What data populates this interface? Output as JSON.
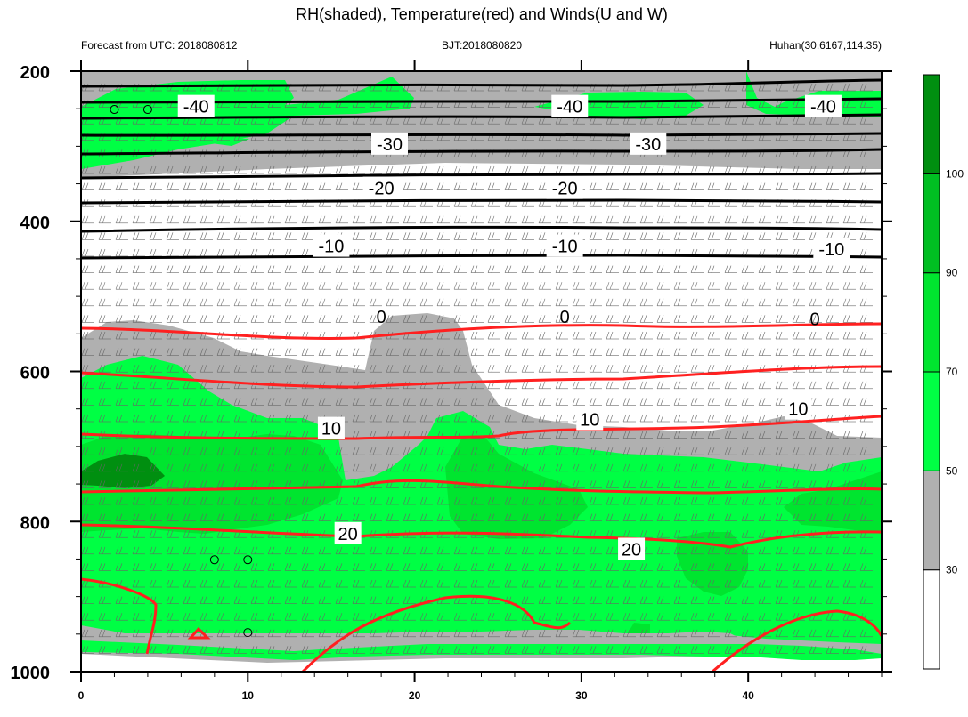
{
  "chart_data": {
    "type": "contour",
    "title": "RH(shaded), Temperature(red) and Winds(U and W)",
    "left_subtitle": "Forecast from UTC: 2018080812",
    "center_subtitle": "BJT:2018080820",
    "right_subtitle": "Huhan(30.6167,114.35)",
    "xlim": [
      0,
      48
    ],
    "ylim": [
      1000,
      200
    ],
    "x_ticks": [
      0,
      10,
      20,
      30,
      40
    ],
    "y_ticks": [
      200,
      400,
      600,
      800,
      1000
    ],
    "colorbar": {
      "levels": [
        30,
        50,
        70,
        90,
        100
      ],
      "colors": [
        "#ffffff",
        "#b0b0b0",
        "#00ff44",
        "#00e52f",
        "#00bf22",
        "#008f10"
      ]
    },
    "temperature_contours": [
      {
        "value": -40,
        "color": "#000000",
        "labels": [
          [
            6.9,
            247
          ],
          [
            29.3,
            247
          ],
          [
            44.5,
            247
          ]
        ]
      },
      {
        "value": -30,
        "color": "#000000",
        "labels": [
          [
            18.5,
            297
          ],
          [
            34.0,
            297
          ]
        ]
      },
      {
        "value": -20,
        "color": "#000000",
        "labels": [
          [
            18.0,
            356
          ],
          [
            29.0,
            356
          ]
        ]
      },
      {
        "value": -10,
        "color": "#000000",
        "labels": [
          [
            15.0,
            433
          ],
          [
            29.0,
            433
          ],
          [
            45.0,
            437
          ]
        ]
      },
      {
        "value": 0,
        "color": "#000000",
        "labels": [
          [
            18.0,
            527
          ],
          [
            29.0,
            527
          ],
          [
            44.0,
            530
          ]
        ]
      },
      {
        "value": 10,
        "color": "#ff2020",
        "labels": [
          [
            15.0,
            676
          ],
          [
            30.5,
            664
          ],
          [
            43.0,
            650
          ]
        ]
      },
      {
        "value": 20,
        "color": "#ff2020",
        "labels": [
          [
            16.0,
            816
          ],
          [
            33.0,
            837
          ]
        ]
      }
    ],
    "circles": [
      [
        2,
        251
      ],
      [
        4,
        251
      ],
      [
        8,
        851
      ],
      [
        10,
        851
      ],
      [
        10,
        948
      ]
    ]
  }
}
